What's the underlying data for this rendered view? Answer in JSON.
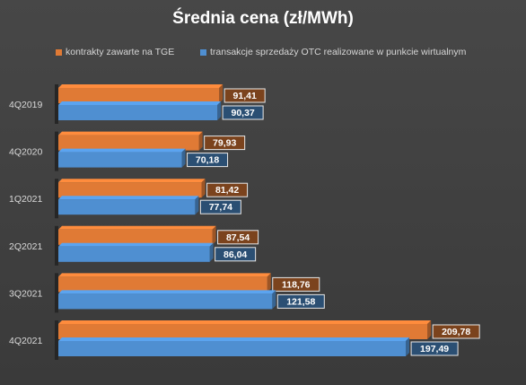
{
  "chart_data": {
    "type": "bar",
    "orientation": "horizontal",
    "title": "Średnia cena (zł/MWh)",
    "categories": [
      "4Q2019",
      "4Q2020",
      "1Q2021",
      "2Q2021",
      "3Q2021",
      "4Q2021"
    ],
    "series": [
      {
        "name": "kontrakty zawarte na TGE",
        "color": "#e07a35",
        "values": [
          91.41,
          79.93,
          81.42,
          87.54,
          118.76,
          209.78
        ],
        "labels": [
          "91,41",
          "79,93",
          "81,42",
          "87,54",
          "118,76",
          "209,78"
        ]
      },
      {
        "name": "transakcje sprzedaży OTC realizowane w punkcie wirtualnym",
        "color": "#4f8fd1",
        "values": [
          90.37,
          70.18,
          77.74,
          86.04,
          121.58,
          197.49
        ],
        "labels": [
          "90,37",
          "70,18",
          "77,74",
          "86,04",
          "121,58",
          "197,49"
        ]
      }
    ],
    "xlim": [
      0,
      250
    ],
    "grid": false,
    "legend_position": "top"
  }
}
